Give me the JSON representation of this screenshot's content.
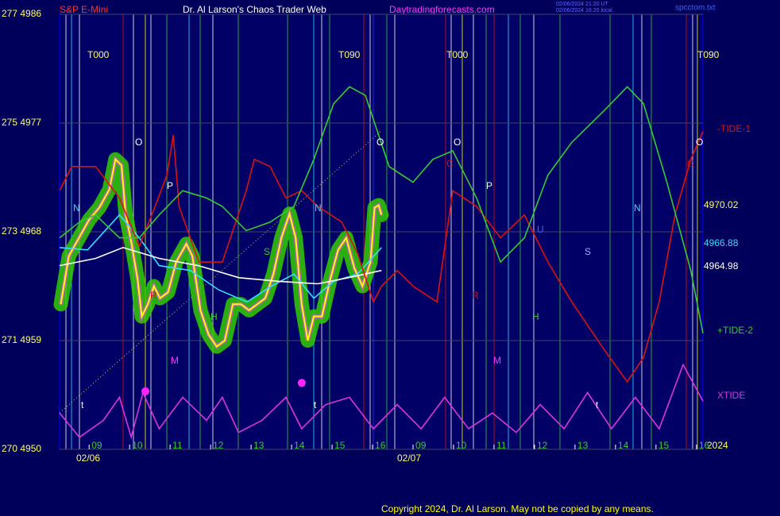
{
  "header": {
    "instrument": "S&P E-Mini",
    "title": "Dr. Al Larson's Chaos Trader Web",
    "site": "Daytradingforecasts.com",
    "stamp_ut": "02/06/2024 21:20 UT",
    "stamp_local": "02/06/2024 16:20 local",
    "file": "spcctom.txt"
  },
  "footer": {
    "copyright": "Copyright 2024, Dr. Al Larson. May not be copied by any means.",
    "year": "2024"
  },
  "chart_data": {
    "type": "line",
    "xlim": [
      -0.73,
      15.16
    ],
    "ylim": [
      4950,
      4986
    ],
    "xticks": [
      {
        "value": 0,
        "label": "09"
      },
      {
        "value": 1,
        "label": "10"
      },
      {
        "value": 2,
        "label": "11"
      },
      {
        "value": 3,
        "label": "12"
      },
      {
        "value": 4,
        "label": "13"
      },
      {
        "value": 5,
        "label": "14"
      },
      {
        "value": 6,
        "label": "15"
      },
      {
        "value": 7,
        "label": "16"
      },
      {
        "value": 8,
        "label": "09"
      },
      {
        "value": 9,
        "label": "10"
      },
      {
        "value": 10,
        "label": "11"
      },
      {
        "value": 11,
        "label": "12"
      },
      {
        "value": 12,
        "label": "13"
      },
      {
        "value": 13,
        "label": "14"
      },
      {
        "value": 14,
        "label": "15"
      },
      {
        "value": 15,
        "label": "16"
      }
    ],
    "dates": [
      "02/06",
      "02/07"
    ],
    "yticks": [
      {
        "value": 4950,
        "label": "270 4950"
      },
      {
        "value": 4959,
        "label": "271 4959"
      },
      {
        "value": 4968,
        "label": "273 4968"
      },
      {
        "value": 4977,
        "label": "275 4977"
      },
      {
        "value": 4986,
        "label": "277 4986"
      }
    ],
    "grid": true,
    "series": [
      {
        "name": "S&P E-Mini",
        "color": "#ffff00",
        "glow": "#33cc00",
        "end_label": "4970.02",
        "x": [
          -0.7,
          -0.5,
          -0.25,
          0,
          0.25,
          0.5,
          0.65,
          0.8,
          0.9,
          1.05,
          1.2,
          1.3,
          1.45,
          1.6,
          1.75,
          1.95,
          2.15,
          2.4,
          2.55,
          2.75,
          2.95,
          3.15,
          3.35,
          3.55,
          3.75,
          3.95,
          4.15,
          4.35,
          4.55,
          4.75,
          4.95,
          5.1,
          5.25,
          5.4,
          5.55,
          5.75,
          5.95,
          6.15,
          6.35,
          6.55,
          6.75,
          6.95,
          7.05,
          7.15,
          7.22
        ],
        "values": [
          4962,
          4966,
          4967.5,
          4969,
          4970,
          4971.5,
          4974,
          4973.5,
          4969.5,
          4967,
          4964,
          4961,
          4962,
          4963.5,
          4962.5,
          4963,
          4965.5,
          4967,
          4966,
          4961.5,
          4959.5,
          4958.5,
          4959,
          4962,
          4962,
          4961.5,
          4962,
          4962.5,
          4964.5,
          4967.5,
          4969.5,
          4967.5,
          4962,
          4959,
          4961,
          4961,
          4964,
          4966.5,
          4967.5,
          4965,
          4963.5,
          4965.5,
          4970,
          4970.2,
          4969.4
        ]
      },
      {
        "color": "#33ddff",
        "end_label": "4966.88",
        "x": [
          -0.73,
          -0.04,
          0.75,
          1.24,
          1.73,
          2.5,
          3.2,
          3.9,
          4.5,
          5.06,
          5.55,
          6.04,
          6.63,
          7.22
        ],
        "values": [
          4966.7,
          4966.5,
          4969.4,
          4967.5,
          4965.2,
          4964.8,
          4963.2,
          4962.2,
          4963.5,
          4964.5,
          4962.5,
          4963.9,
          4964.5,
          4966.7
        ]
      },
      {
        "color": "#ffffff",
        "end_label": "4964.98",
        "x": [
          -0.73,
          0.16,
          0.84,
          1.73,
          2.7,
          3.7,
          4.7,
          5.65,
          6.4,
          7.22
        ],
        "values": [
          4965.2,
          4965.8,
          4966.7,
          4965.8,
          4965.2,
          4964.2,
          4963.9,
          4963.7,
          4964.2,
          4964.8
        ]
      },
      {
        "name": "-TIDE-1",
        "color": "#dd1111",
        "x": [
          -0.73,
          -0.43,
          0.16,
          0.75,
          1.24,
          1.63,
          1.92,
          2.08,
          2.22,
          2.71,
          3.29,
          3.88,
          4.08,
          4.47,
          4.86,
          5.25,
          5.65,
          6.24,
          6.63,
          7.02,
          7.22,
          7.61,
          8.0,
          8.59,
          8.98,
          9.57,
          10.16,
          10.75,
          11.33,
          11.92,
          12.71,
          13.29,
          13.69,
          14.08,
          14.47,
          14.86,
          15.16
        ],
        "values": [
          4971.4,
          4973.4,
          4973.4,
          4970.8,
          4966.8,
          4970.1,
          4972.7,
          4976.0,
          4970.1,
          4965.5,
          4965.5,
          4971.4,
          4974.0,
          4973.4,
          4970.8,
          4971.4,
          4970.1,
          4968.8,
          4966.2,
          4962.2,
          4963.5,
          4964.8,
          4963.5,
          4962.2,
          4971.4,
          4970.1,
          4967.5,
          4969.4,
          4965.5,
          4962.2,
          4958.3,
          4955.6,
          4957.6,
          4962.2,
          4969.4,
          4974.0,
          4976.3
        ]
      },
      {
        "name": "+TIDE-2",
        "color": "#33cc33",
        "x": [
          -0.73,
          -0.24,
          0.16,
          0.75,
          1.24,
          1.73,
          2.31,
          2.9,
          3.29,
          3.88,
          4.47,
          5.06,
          5.55,
          6.04,
          6.43,
          6.82,
          7.02,
          7.41,
          8.0,
          8.49,
          8.98,
          9.57,
          10.16,
          10.75,
          11.33,
          11.92,
          12.71,
          13.29,
          13.69,
          14.27,
          14.86,
          15.16
        ],
        "values": [
          4967.5,
          4968.8,
          4969.4,
          4967.5,
          4967.5,
          4969.4,
          4971.4,
          4970.8,
          4970.1,
          4968.1,
          4968.8,
          4970.1,
          4974.0,
          4978.6,
          4980.0,
          4979.3,
          4977.3,
          4973.4,
          4972.1,
          4974.0,
          4974.7,
          4970.8,
          4965.5,
          4967.5,
          4972.7,
          4975.4,
          4978.0,
          4980.0,
          4978.6,
          4972.1,
          4964.8,
          4959.6
        ]
      },
      {
        "name": "XTIDE",
        "color": "#dd33dd",
        "x": [
          -0.73,
          -0.24,
          0.35,
          0.75,
          1.04,
          1.33,
          1.73,
          2.31,
          2.9,
          3.29,
          3.69,
          4.27,
          4.86,
          5.25,
          5.84,
          6.43,
          7.02,
          7.61,
          8.2,
          8.78,
          9.37,
          9.96,
          10.55,
          11.14,
          11.73,
          12.31,
          12.9,
          13.49,
          14.08,
          14.67,
          15.16
        ],
        "values": [
          4953.0,
          4951.0,
          4952.4,
          4954.3,
          4951.0,
          4954.7,
          4951.7,
          4954.3,
          4952.4,
          4954.3,
          4951.4,
          4952.4,
          4954.3,
          4951.7,
          4953.7,
          4954.3,
          4951.7,
          4953.7,
          4951.7,
          4954.3,
          4951.7,
          4953.0,
          4951.4,
          4953.7,
          4951.7,
          4954.7,
          4951.7,
          4954.3,
          4951.7,
          4957.0,
          4954.0
        ]
      }
    ],
    "pivots": {
      "color": "#ff22ff",
      "x": [
        1.39,
        5.25
      ],
      "values": [
        4954.8,
        4955.5
      ]
    },
    "annotations": [
      "T000",
      "T090",
      "T000",
      "T090",
      "O",
      "O",
      "O",
      "O",
      "P",
      "P",
      "N",
      "N",
      "N",
      "R",
      "R",
      "M",
      "M",
      "H",
      "H",
      "S",
      "S",
      "t",
      "t",
      "t",
      "U",
      "C",
      "C"
    ]
  }
}
